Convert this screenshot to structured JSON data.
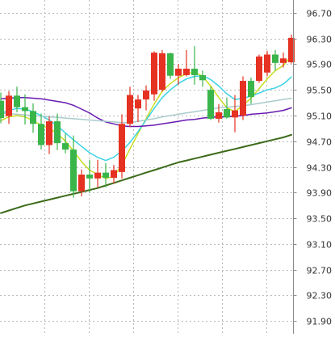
{
  "chart_data": {
    "type": "candlestick",
    "title": "",
    "xlabel": "",
    "ylabel": "",
    "ylim": [
      91.7,
      96.9
    ],
    "grid": true,
    "y_axis_position": "right",
    "y_ticks": [
      "96.70",
      "96.30",
      "95.90",
      "95.50",
      "95.10",
      "94.70",
      "94.30",
      "93.90",
      "93.50",
      "93.10",
      "92.70",
      "92.30",
      "91.90"
    ],
    "colors": {
      "up": "#e63222",
      "down": "#39b54a",
      "ma_yellow": "#c8dc1e",
      "ma_cyan": "#3cd2e6",
      "ma_purple": "#6a1ab0",
      "ma_lightgray": "#aacccc",
      "ma_darkgreen": "#3d6b1a"
    },
    "candles": [
      {
        "o": 95.33,
        "h": 95.46,
        "l": 94.98,
        "c": 95.06
      },
      {
        "o": 95.09,
        "h": 95.48,
        "l": 94.97,
        "c": 95.41
      },
      {
        "o": 95.41,
        "h": 95.55,
        "l": 95.15,
        "c": 95.23
      },
      {
        "o": 95.23,
        "h": 95.43,
        "l": 94.96,
        "c": 95.17
      },
      {
        "o": 95.17,
        "h": 95.29,
        "l": 94.83,
        "c": 94.97
      },
      {
        "o": 94.97,
        "h": 95.13,
        "l": 94.57,
        "c": 94.64
      },
      {
        "o": 94.64,
        "h": 95.08,
        "l": 94.5,
        "c": 95.01
      },
      {
        "o": 95.01,
        "h": 95.13,
        "l": 94.56,
        "c": 94.67
      },
      {
        "o": 94.67,
        "h": 94.82,
        "l": 94.51,
        "c": 94.57
      },
      {
        "o": 94.57,
        "h": 94.79,
        "l": 93.82,
        "c": 93.92
      },
      {
        "o": 93.92,
        "h": 94.26,
        "l": 93.84,
        "c": 94.18
      },
      {
        "o": 94.18,
        "h": 94.41,
        "l": 93.9,
        "c": 94.12
      },
      {
        "o": 94.12,
        "h": 94.41,
        "l": 93.98,
        "c": 94.21
      },
      {
        "o": 94.21,
        "h": 94.36,
        "l": 93.98,
        "c": 94.13
      },
      {
        "o": 94.13,
        "h": 94.33,
        "l": 94.04,
        "c": 94.25
      },
      {
        "o": 94.22,
        "h": 95.12,
        "l": 94.12,
        "c": 94.97
      },
      {
        "o": 94.97,
        "h": 95.55,
        "l": 94.92,
        "c": 95.42
      },
      {
        "o": 95.21,
        "h": 95.42,
        "l": 95.0,
        "c": 95.35
      },
      {
        "o": 95.35,
        "h": 95.57,
        "l": 95.18,
        "c": 95.49
      },
      {
        "o": 95.43,
        "h": 96.1,
        "l": 95.33,
        "c": 96.08
      },
      {
        "o": 95.5,
        "h": 96.12,
        "l": 95.47,
        "c": 96.07
      },
      {
        "o": 96.07,
        "h": 96.08,
        "l": 95.67,
        "c": 95.72
      },
      {
        "o": 95.72,
        "h": 95.9,
        "l": 95.58,
        "c": 95.83
      },
      {
        "o": 95.73,
        "h": 96.12,
        "l": 95.71,
        "c": 95.83
      },
      {
        "o": 95.83,
        "h": 96.18,
        "l": 95.58,
        "c": 95.73
      },
      {
        "o": 95.73,
        "h": 95.8,
        "l": 95.55,
        "c": 95.65
      },
      {
        "o": 95.5,
        "h": 95.55,
        "l": 95.03,
        "c": 95.05
      },
      {
        "o": 95.05,
        "h": 95.28,
        "l": 94.99,
        "c": 95.15
      },
      {
        "o": 95.2,
        "h": 95.38,
        "l": 95.05,
        "c": 95.07
      },
      {
        "o": 95.07,
        "h": 95.42,
        "l": 94.84,
        "c": 95.18
      },
      {
        "o": 95.1,
        "h": 95.71,
        "l": 95.03,
        "c": 95.64
      },
      {
        "o": 95.64,
        "h": 95.69,
        "l": 95.28,
        "c": 95.39
      },
      {
        "o": 95.64,
        "h": 96.05,
        "l": 95.61,
        "c": 96.02
      },
      {
        "o": 95.77,
        "h": 96.11,
        "l": 95.71,
        "c": 96.05
      },
      {
        "o": 96.05,
        "h": 96.12,
        "l": 95.8,
        "c": 95.92
      },
      {
        "o": 95.92,
        "h": 96.08,
        "l": 95.85,
        "c": 95.99
      },
      {
        "o": 95.93,
        "h": 96.36,
        "l": 95.91,
        "c": 96.31
      }
    ],
    "moving_averages": [
      {
        "key": "ma_yellow",
        "width": 1.5,
        "values": [
          95.02,
          95.08,
          95.1,
          95.08,
          95.02,
          94.95,
          94.9,
          94.82,
          94.7,
          94.55,
          94.38,
          94.25,
          94.18,
          94.12,
          94.15,
          94.33,
          94.58,
          94.82,
          95.05,
          95.28,
          95.48,
          95.6,
          95.69,
          95.75,
          95.78,
          95.71,
          95.56,
          95.38,
          95.22,
          95.16,
          95.26,
          95.37,
          95.52,
          95.67,
          95.8,
          95.88,
          96.03
        ]
      },
      {
        "key": "ma_cyan",
        "width": 1.5,
        "values": [
          95.13,
          95.18,
          95.21,
          95.2,
          95.16,
          95.1,
          95.03,
          94.94,
          94.83,
          94.72,
          94.62,
          94.52,
          94.45,
          94.4,
          94.45,
          94.55,
          94.68,
          94.85,
          95.03,
          95.21,
          95.38,
          95.5,
          95.6,
          95.67,
          95.71,
          95.72,
          95.66,
          95.56,
          95.44,
          95.35,
          95.37,
          95.4,
          95.45,
          95.5,
          95.53,
          95.59,
          95.7
        ]
      },
      {
        "key": "ma_purple",
        "width": 1.5,
        "values": [
          95.36,
          95.37,
          95.38,
          95.38,
          95.37,
          95.36,
          95.34,
          95.32,
          95.3,
          95.26,
          95.2,
          95.14,
          95.06,
          95.0,
          94.97,
          94.94,
          94.93,
          94.93,
          94.94,
          94.95,
          94.97,
          94.99,
          95.01,
          95.03,
          95.04,
          95.06,
          95.07,
          95.08,
          95.08,
          95.09,
          95.1,
          95.12,
          95.13,
          95.14,
          95.16,
          95.18,
          95.22
        ]
      },
      {
        "key": "ma_lightgray",
        "width": 1.5,
        "values": [
          95.14,
          95.13,
          95.12,
          95.11,
          95.1,
          95.09,
          95.08,
          95.07,
          95.06,
          95.05,
          95.04,
          95.03,
          95.02,
          95.01,
          95.0,
          94.99,
          94.99,
          95.01,
          95.03,
          95.05,
          95.08,
          95.1,
          95.12,
          95.14,
          95.16,
          95.18,
          95.2,
          95.22,
          95.23,
          95.24,
          95.25,
          95.27,
          95.29,
          95.31,
          95.33,
          95.35,
          95.37
        ]
      },
      {
        "key": "ma_darkgreen",
        "width": 2,
        "values": [
          93.58,
          93.62,
          93.66,
          93.7,
          93.73,
          93.76,
          93.79,
          93.82,
          93.85,
          93.88,
          93.91,
          93.94,
          93.97,
          94.01,
          94.05,
          94.09,
          94.13,
          94.17,
          94.21,
          94.25,
          94.29,
          94.33,
          94.37,
          94.4,
          94.43,
          94.46,
          94.49,
          94.52,
          94.55,
          94.58,
          94.61,
          94.64,
          94.67,
          94.7,
          94.73,
          94.76,
          94.8
        ]
      }
    ]
  }
}
